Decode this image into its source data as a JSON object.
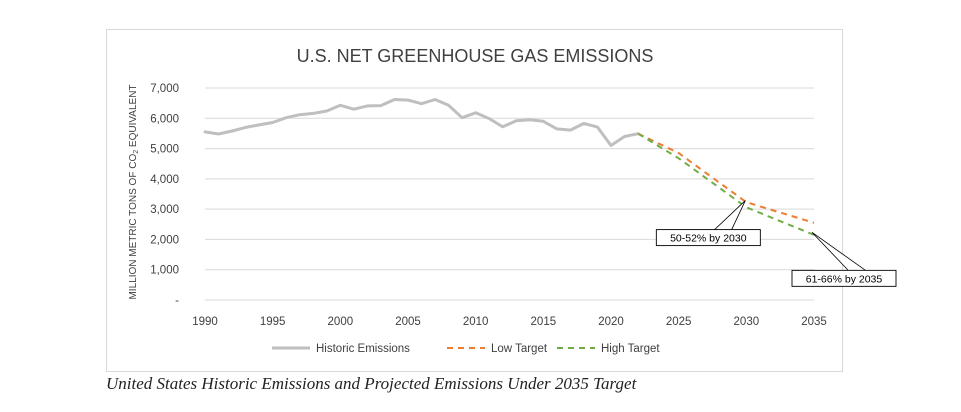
{
  "chart_data": {
    "type": "line",
    "title": "U.S. NET GREENHOUSE GAS EMISSIONS",
    "ylabel": "MILLION METRIC TONS OF CO2 EQUIVALENT",
    "ylabel_main": "MILLION METRIC TONS OF CO",
    "ylabel_sub": "2",
    "ylabel_tail": " EQUIVALENT",
    "xlim": [
      1990,
      2035
    ],
    "ylim": [
      0,
      7000
    ],
    "x_ticks": [
      1990,
      1995,
      2000,
      2005,
      2010,
      2015,
      2020,
      2025,
      2030,
      2035
    ],
    "x_tick_labels": [
      "1990",
      "1995",
      "2000",
      "2005",
      "2010",
      "2015",
      "2020",
      "2025",
      "2030",
      "2035"
    ],
    "y_ticks": [
      0,
      1000,
      2000,
      3000,
      4000,
      5000,
      6000,
      7000
    ],
    "y_tick_labels": [
      "-",
      "1,000",
      "2,000",
      "3,000",
      "4,000",
      "5,000",
      "6,000",
      "7,000"
    ],
    "grid": true,
    "legend_position": "bottom",
    "series": [
      {
        "name": "Historic Emissions",
        "color": "#bfbfbf",
        "style": "solid",
        "x": [
          1990,
          1991,
          1992,
          1993,
          1994,
          1995,
          1996,
          1997,
          1998,
          1999,
          2000,
          2001,
          2002,
          2003,
          2004,
          2005,
          2006,
          2007,
          2008,
          2009,
          2010,
          2011,
          2012,
          2013,
          2014,
          2015,
          2016,
          2017,
          2018,
          2019,
          2020,
          2021,
          2022
        ],
        "values": [
          5550,
          5480,
          5580,
          5700,
          5780,
          5860,
          6020,
          6120,
          6160,
          6240,
          6430,
          6300,
          6410,
          6420,
          6620,
          6600,
          6480,
          6620,
          6430,
          6020,
          6180,
          5990,
          5720,
          5920,
          5950,
          5900,
          5650,
          5610,
          5830,
          5710,
          5100,
          5400,
          5490
        ]
      },
      {
        "name": "Low Target",
        "color": "#ed7d31",
        "style": "dashed",
        "x": [
          2022,
          2025,
          2030,
          2035
        ],
        "values": [
          5490,
          4850,
          3230,
          2550
        ]
      },
      {
        "name": "High Target",
        "color": "#70ad47",
        "style": "dashed",
        "x": [
          2022,
          2025,
          2030,
          2035
        ],
        "values": [
          5490,
          4680,
          3060,
          2150
        ]
      }
    ],
    "annotations": [
      {
        "text": "50-52% by 2030",
        "x": 2030,
        "y": 3150
      },
      {
        "text": "61-66% by 2035",
        "x": 2035,
        "y": 2300
      }
    ]
  },
  "caption": "United States Historic Emissions and Projected Emissions Under 2035 Target"
}
